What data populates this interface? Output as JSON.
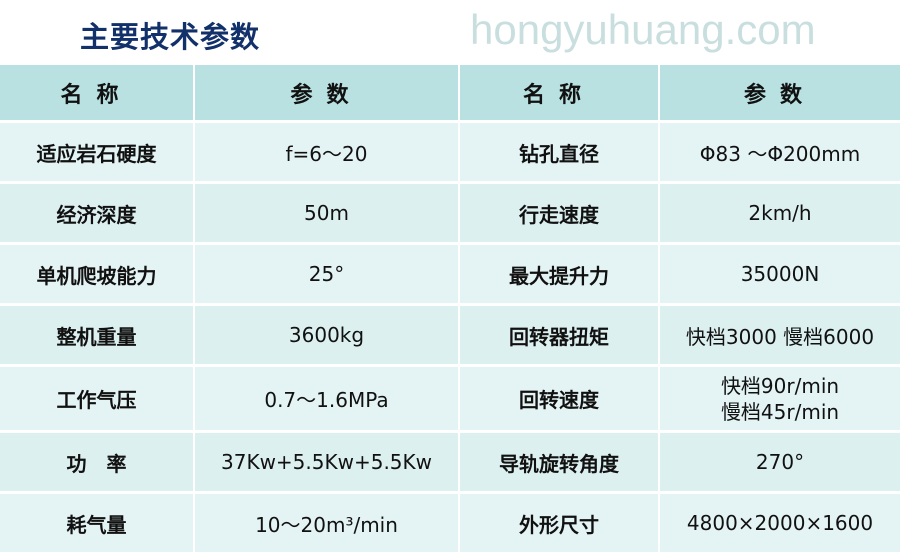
{
  "title": "主要技术参数",
  "headers": [
    "名称",
    "参数",
    "名称",
    "参数"
  ],
  "rows": [
    {
      "name1": "适应岩石硬度",
      "value1": "f=6～20",
      "name2": "钻孔直径",
      "value2": "Φ83 ～Φ200mm"
    },
    {
      "name1": "经济深度",
      "value1": "50m",
      "name2": "行走速度",
      "value2": "2km/h"
    },
    {
      "name1": "单机爬坡能力",
      "value1": "25°",
      "name2": "最大提升力",
      "value2": "35000N"
    },
    {
      "name1": "整机重量",
      "value1": "3600kg",
      "name2": "回转器扭矩",
      "value2": "快档3000 慢档6000"
    },
    {
      "name1": "工作气压",
      "value1": "0.7～1.6MPa",
      "name2": "回转速度",
      "value2": "快档90r/min",
      "value2b": "慢档45r/min"
    },
    {
      "name1": "功　率",
      "value1": "37Kw+5.5Kw+5.5Kw",
      "name2": "导轨旋转角度",
      "value2": "270°"
    },
    {
      "name1": "耗气量",
      "value1": "10～20m³/min",
      "name2": "外形尺寸",
      "value2": "4800×2000×1600"
    }
  ],
  "watermark": "hongyuhuang.com",
  "colors": {
    "title": "#12306a",
    "header_bg": "#b9e1e1",
    "row_bg": "#e4f3f3"
  }
}
